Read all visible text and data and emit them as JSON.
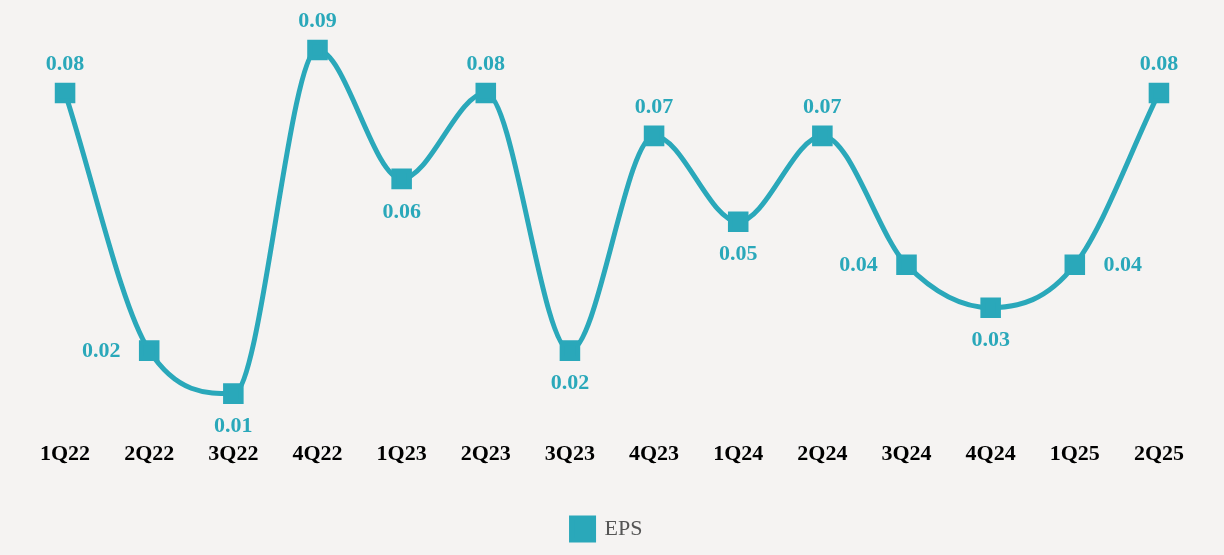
{
  "chart_data": {
    "type": "line",
    "categories": [
      "1Q22",
      "2Q22",
      "3Q22",
      "4Q22",
      "1Q23",
      "2Q23",
      "3Q23",
      "4Q23",
      "1Q24",
      "2Q24",
      "3Q24",
      "4Q24",
      "1Q25",
      "2Q25"
    ],
    "series": [
      {
        "name": "EPS",
        "color": "#2aa8ba",
        "values": [
          0.08,
          0.02,
          0.01,
          0.09,
          0.06,
          0.08,
          0.02,
          0.07,
          0.05,
          0.07,
          0.04,
          0.03,
          0.04,
          0.08
        ]
      }
    ],
    "data_labels": true,
    "marker": "square",
    "legend": "bottom",
    "grid": false
  }
}
